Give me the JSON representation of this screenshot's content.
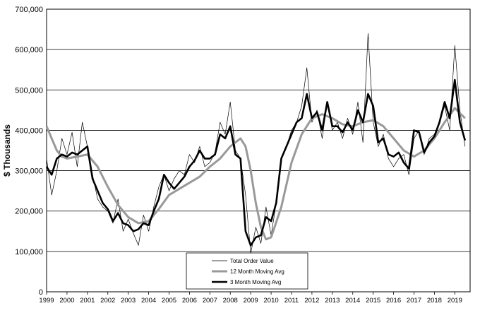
{
  "chart_data": {
    "type": "line",
    "title": "",
    "xlabel": "",
    "ylabel": "$ Thousands",
    "xlim": [
      1999.0,
      2019.75
    ],
    "ylim": [
      0,
      700000
    ],
    "y_ticks": [
      0,
      100000,
      200000,
      300000,
      400000,
      500000,
      600000,
      700000
    ],
    "y_tick_labels": [
      "0",
      "100,000",
      "200,000",
      "300,000",
      "400,000",
      "500,000",
      "600,000",
      "700,000"
    ],
    "x_tick_labels": [
      "1999",
      "2000",
      "2001",
      "2002",
      "2003",
      "2004",
      "2005",
      "2006",
      "2007",
      "2008",
      "2009",
      "2010",
      "2011",
      "2012",
      "2013",
      "2014",
      "2015",
      "2016",
      "2017",
      "2018",
      "2019"
    ],
    "grid": "horizontal",
    "legend_position": "bottom-center",
    "colors": {
      "total": "#000000",
      "ma12": "#999999",
      "ma3": "#000000",
      "gridline": "#000000"
    },
    "series": [
      {
        "name": "Total Order Value",
        "x": [
          1999.0,
          1999.25,
          1999.5,
          1999.75,
          2000.0,
          2000.25,
          2000.5,
          2000.75,
          2001.0,
          2001.25,
          2001.5,
          2001.75,
          2002.0,
          2002.25,
          2002.5,
          2002.75,
          2003.0,
          2003.25,
          2003.5,
          2003.75,
          2004.0,
          2004.25,
          2004.5,
          2004.75,
          2005.0,
          2005.25,
          2005.5,
          2005.75,
          2006.0,
          2006.25,
          2006.5,
          2006.75,
          2007.0,
          2007.25,
          2007.5,
          2007.75,
          2008.0,
          2008.25,
          2008.5,
          2008.75,
          2009.0,
          2009.25,
          2009.5,
          2009.75,
          2010.0,
          2010.25,
          2010.5,
          2010.75,
          2011.0,
          2011.25,
          2011.5,
          2011.75,
          2012.0,
          2012.25,
          2012.5,
          2012.75,
          2013.0,
          2013.25,
          2013.5,
          2013.75,
          2014.0,
          2014.25,
          2014.5,
          2014.75,
          2015.0,
          2015.25,
          2015.5,
          2015.75,
          2016.0,
          2016.25,
          2016.5,
          2016.75,
          2017.0,
          2017.25,
          2017.5,
          2017.75,
          2018.0,
          2018.25,
          2018.5,
          2018.75,
          2019.0,
          2019.25,
          2019.5
        ],
        "values": [
          330000,
          240000,
          300000,
          380000,
          340000,
          395000,
          310000,
          420000,
          360000,
          290000,
          230000,
          210000,
          200000,
          170000,
          230000,
          150000,
          180000,
          145000,
          115000,
          190000,
          150000,
          210000,
          260000,
          290000,
          250000,
          280000,
          300000,
          290000,
          340000,
          320000,
          360000,
          310000,
          320000,
          345000,
          420000,
          390000,
          470000,
          350000,
          330000,
          240000,
          95000,
          160000,
          120000,
          210000,
          140000,
          220000,
          330000,
          360000,
          400000,
          420000,
          460000,
          555000,
          420000,
          450000,
          380000,
          470000,
          400000,
          420000,
          380000,
          430000,
          390000,
          470000,
          370000,
          640000,
          420000,
          360000,
          390000,
          330000,
          310000,
          330000,
          340000,
          290000,
          380000,
          400000,
          340000,
          380000,
          390000,
          420000,
          460000,
          400000,
          610000,
          450000,
          360000
        ]
      },
      {
        "name": "12 Month Moving Avg",
        "x": [
          1999.0,
          1999.25,
          1999.5,
          1999.75,
          2000.0,
          2000.5,
          2001.0,
          2001.5,
          2002.0,
          2002.5,
          2003.0,
          2003.5,
          2004.0,
          2004.5,
          2005.0,
          2005.5,
          2006.0,
          2006.5,
          2007.0,
          2007.5,
          2008.0,
          2008.5,
          2008.75,
          2009.0,
          2009.25,
          2009.5,
          2009.75,
          2010.0,
          2010.5,
          2011.0,
          2011.5,
          2012.0,
          2012.5,
          2013.0,
          2013.5,
          2014.0,
          2014.5,
          2015.0,
          2015.5,
          2016.0,
          2016.5,
          2017.0,
          2017.5,
          2018.0,
          2018.5,
          2019.0,
          2019.5
        ],
        "values": [
          410000,
          380000,
          350000,
          335000,
          330000,
          335000,
          340000,
          310000,
          260000,
          215000,
          185000,
          170000,
          175000,
          205000,
          240000,
          255000,
          270000,
          285000,
          310000,
          330000,
          360000,
          380000,
          360000,
          300000,
          220000,
          160000,
          130000,
          135000,
          210000,
          320000,
          390000,
          430000,
          440000,
          430000,
          415000,
          410000,
          420000,
          425000,
          410000,
          380000,
          350000,
          335000,
          350000,
          380000,
          420000,
          455000,
          430000
        ]
      },
      {
        "name": "3 Month Moving Avg",
        "x": [
          1999.0,
          1999.25,
          1999.5,
          1999.75,
          2000.0,
          2000.25,
          2000.5,
          2000.75,
          2001.0,
          2001.25,
          2001.5,
          2001.75,
          2002.0,
          2002.25,
          2002.5,
          2002.75,
          2003.0,
          2003.25,
          2003.5,
          2003.75,
          2004.0,
          2004.25,
          2004.5,
          2004.75,
          2005.0,
          2005.25,
          2005.5,
          2005.75,
          2006.0,
          2006.25,
          2006.5,
          2006.75,
          2007.0,
          2007.25,
          2007.5,
          2007.75,
          2008.0,
          2008.25,
          2008.5,
          2008.75,
          2009.0,
          2009.25,
          2009.5,
          2009.75,
          2010.0,
          2010.25,
          2010.5,
          2010.75,
          2011.0,
          2011.25,
          2011.5,
          2011.75,
          2012.0,
          2012.25,
          2012.5,
          2012.75,
          2013.0,
          2013.25,
          2013.5,
          2013.75,
          2014.0,
          2014.25,
          2014.5,
          2014.75,
          2015.0,
          2015.25,
          2015.5,
          2015.75,
          2016.0,
          2016.25,
          2016.5,
          2016.75,
          2017.0,
          2017.25,
          2017.5,
          2017.75,
          2018.0,
          2018.25,
          2018.5,
          2018.75,
          2019.0,
          2019.25,
          2019.5
        ],
        "values": [
          310000,
          290000,
          330000,
          340000,
          335000,
          345000,
          340000,
          350000,
          360000,
          280000,
          250000,
          220000,
          205000,
          175000,
          195000,
          170000,
          165000,
          150000,
          155000,
          170000,
          165000,
          200000,
          230000,
          290000,
          270000,
          255000,
          270000,
          285000,
          310000,
          325000,
          350000,
          330000,
          330000,
          340000,
          390000,
          380000,
          410000,
          340000,
          330000,
          150000,
          115000,
          135000,
          140000,
          185000,
          175000,
          220000,
          330000,
          360000,
          390000,
          420000,
          430000,
          490000,
          430000,
          445000,
          400000,
          470000,
          410000,
          410000,
          395000,
          420000,
          400000,
          450000,
          420000,
          490000,
          460000,
          370000,
          380000,
          340000,
          335000,
          345000,
          320000,
          305000,
          400000,
          395000,
          345000,
          370000,
          385000,
          420000,
          470000,
          430000,
          525000,
          420000,
          375000
        ]
      }
    ]
  }
}
